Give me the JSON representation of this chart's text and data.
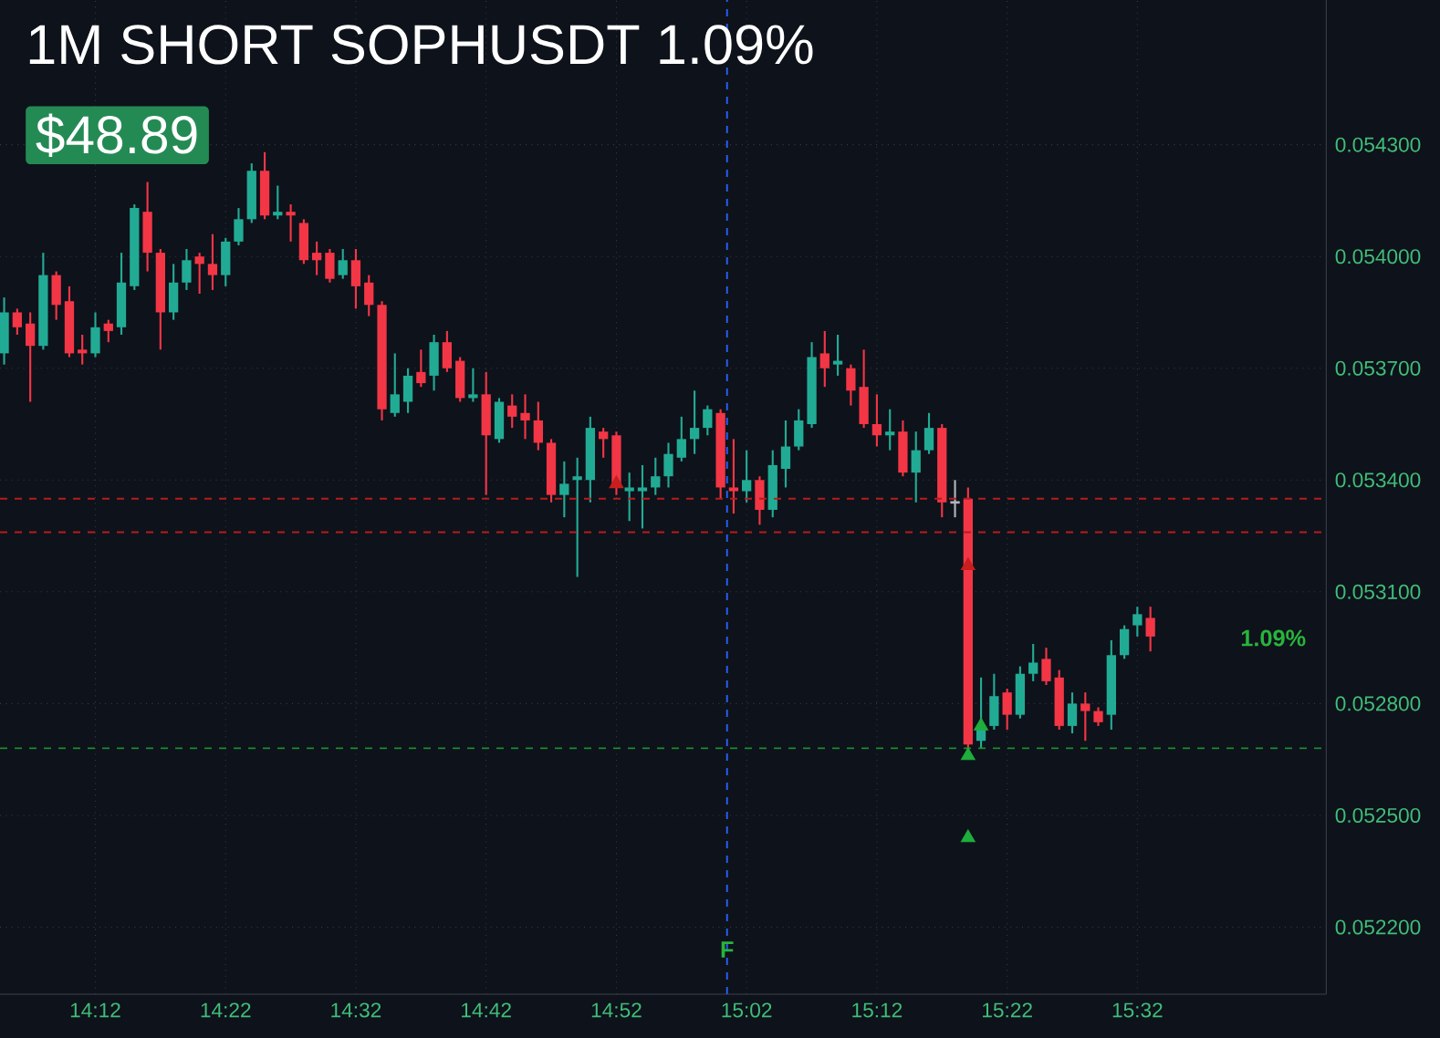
{
  "chart_data": {
    "type": "candlestick",
    "title": "1M SHORT SOPHUSDT 1.09%",
    "x": [
      14.0833,
      14.1,
      14.1167,
      14.1333,
      14.15,
      14.1667,
      14.1833,
      14.2,
      14.2167,
      14.2333,
      14.25,
      14.2667,
      14.2833,
      14.3,
      14.3167,
      14.3333,
      14.35,
      14.3667,
      14.3833,
      14.4,
      14.4167,
      14.4333,
      14.45,
      14.4667,
      14.4833,
      14.5,
      14.5167,
      14.5333,
      14.55,
      14.5667,
      14.5833,
      14.6,
      14.6167,
      14.6333,
      14.65,
      14.6667,
      14.6833,
      14.7,
      14.7167,
      14.7333,
      14.75,
      14.7667,
      14.7833,
      14.8,
      14.8167,
      14.8333,
      14.85,
      14.8667,
      14.8833,
      14.9,
      14.9167,
      14.9333,
      14.95,
      14.9667,
      14.9833,
      15.0,
      15.0167,
      15.0333,
      15.05,
      15.0667,
      15.0833,
      15.1,
      15.1167,
      15.1333,
      15.15,
      15.1667,
      15.1833,
      15.2,
      15.2167,
      15.2333,
      15.25,
      15.2667,
      15.2833,
      15.3,
      15.3167,
      15.3333,
      15.35,
      15.3667,
      15.3833,
      15.4,
      15.4167,
      15.4333,
      15.45,
      15.4667,
      15.4833,
      15.5,
      15.5167,
      15.5333,
      15.55
    ],
    "ohlc": [
      [
        0.05374,
        0.05389,
        0.05371,
        0.05385
      ],
      [
        0.05385,
        0.05386,
        0.05379,
        0.05381
      ],
      [
        0.05382,
        0.05385,
        0.05361,
        0.05376
      ],
      [
        0.05376,
        0.05401,
        0.05375,
        0.05395
      ],
      [
        0.05395,
        0.05396,
        0.05383,
        0.05387
      ],
      [
        0.05388,
        0.05392,
        0.05373,
        0.05374
      ],
      [
        0.05375,
        0.05379,
        0.05371,
        0.05374
      ],
      [
        0.05374,
        0.05385,
        0.05373,
        0.05381
      ],
      [
        0.05382,
        0.05383,
        0.05377,
        0.0538
      ],
      [
        0.05381,
        0.05401,
        0.05379,
        0.05393
      ],
      [
        0.05392,
        0.05414,
        0.05391,
        0.05413
      ],
      [
        0.05412,
        0.0542,
        0.05396,
        0.05401
      ],
      [
        0.05401,
        0.05402,
        0.05375,
        0.05385
      ],
      [
        0.05385,
        0.05398,
        0.05383,
        0.05393
      ],
      [
        0.05393,
        0.05402,
        0.05391,
        0.05399
      ],
      [
        0.054,
        0.05401,
        0.0539,
        0.05398
      ],
      [
        0.05398,
        0.05406,
        0.05391,
        0.05395
      ],
      [
        0.05395,
        0.05405,
        0.05392,
        0.05404
      ],
      [
        0.05404,
        0.05413,
        0.05403,
        0.0541
      ],
      [
        0.0541,
        0.05425,
        0.05409,
        0.05423
      ],
      [
        0.05423,
        0.05428,
        0.0541,
        0.05411
      ],
      [
        0.05411,
        0.05419,
        0.0541,
        0.05412
      ],
      [
        0.05412,
        0.05414,
        0.05404,
        0.05411
      ],
      [
        0.05409,
        0.0541,
        0.05398,
        0.05399
      ],
      [
        0.05401,
        0.05404,
        0.05395,
        0.05399
      ],
      [
        0.05401,
        0.05402,
        0.05393,
        0.05394
      ],
      [
        0.05395,
        0.05402,
        0.05394,
        0.05399
      ],
      [
        0.05399,
        0.05402,
        0.05386,
        0.05392
      ],
      [
        0.05393,
        0.05395,
        0.05384,
        0.05387
      ],
      [
        0.05387,
        0.05388,
        0.05356,
        0.05359
      ],
      [
        0.05358,
        0.05374,
        0.05357,
        0.05363
      ],
      [
        0.05361,
        0.0537,
        0.05358,
        0.05368
      ],
      [
        0.05369,
        0.05375,
        0.05365,
        0.05366
      ],
      [
        0.05368,
        0.05379,
        0.05364,
        0.05377
      ],
      [
        0.05377,
        0.0538,
        0.05369,
        0.0537
      ],
      [
        0.05372,
        0.05373,
        0.05361,
        0.05362
      ],
      [
        0.05362,
        0.0537,
        0.05361,
        0.05363
      ],
      [
        0.05363,
        0.05369,
        0.05336,
        0.05352
      ],
      [
        0.05351,
        0.05362,
        0.0535,
        0.05361
      ],
      [
        0.0536,
        0.05363,
        0.05354,
        0.05357
      ],
      [
        0.05358,
        0.05363,
        0.05351,
        0.05356
      ],
      [
        0.05356,
        0.05361,
        0.05348,
        0.0535
      ],
      [
        0.0535,
        0.05351,
        0.05334,
        0.05336
      ],
      [
        0.05336,
        0.05345,
        0.0533,
        0.05339
      ],
      [
        0.0534,
        0.05346,
        0.05314,
        0.05341
      ],
      [
        0.0534,
        0.05357,
        0.05334,
        0.05354
      ],
      [
        0.05353,
        0.05354,
        0.05346,
        0.05351
      ],
      [
        0.05352,
        0.05353,
        0.05336,
        0.05338
      ],
      [
        0.05337,
        0.05342,
        0.05329,
        0.05338
      ],
      [
        0.05337,
        0.05344,
        0.05327,
        0.05338
      ],
      [
        0.05338,
        0.05346,
        0.05336,
        0.05341
      ],
      [
        0.05341,
        0.0535,
        0.05338,
        0.05347
      ],
      [
        0.05346,
        0.05357,
        0.05345,
        0.05351
      ],
      [
        0.05351,
        0.05364,
        0.05347,
        0.05354
      ],
      [
        0.05354,
        0.0536,
        0.05352,
        0.05359
      ],
      [
        0.05358,
        0.05359,
        0.05335,
        0.05338
      ],
      [
        0.05338,
        0.05351,
        0.05331,
        0.05337
      ],
      [
        0.05337,
        0.05348,
        0.05334,
        0.0534
      ],
      [
        0.0534,
        0.05341,
        0.05328,
        0.05332
      ],
      [
        0.05332,
        0.05348,
        0.0533,
        0.05344
      ],
      [
        0.05343,
        0.05356,
        0.05338,
        0.05349
      ],
      [
        0.05349,
        0.05359,
        0.05348,
        0.05356
      ],
      [
        0.05355,
        0.05377,
        0.05354,
        0.05373
      ],
      [
        0.05374,
        0.0538,
        0.05365,
        0.0537
      ],
      [
        0.05371,
        0.05379,
        0.05368,
        0.05372
      ],
      [
        0.0537,
        0.05371,
        0.0536,
        0.05364
      ],
      [
        0.05365,
        0.05375,
        0.05354,
        0.05355
      ],
      [
        0.05355,
        0.05363,
        0.05349,
        0.05352
      ],
      [
        0.05352,
        0.05359,
        0.05348,
        0.05353
      ],
      [
        0.05353,
        0.05356,
        0.05341,
        0.05342
      ],
      [
        0.05342,
        0.05353,
        0.05334,
        0.05348
      ],
      [
        0.05348,
        0.05358,
        0.05347,
        0.05354
      ],
      [
        0.05354,
        0.05355,
        0.0533,
        0.05334
      ],
      [
        0.05334,
        0.0534,
        0.0533,
        0.05334
      ],
      [
        0.05335,
        0.05338,
        0.05267,
        0.05269
      ],
      [
        0.0527,
        0.05287,
        0.05268,
        0.05273
      ],
      [
        0.05274,
        0.05288,
        0.05273,
        0.05282
      ],
      [
        0.05283,
        0.05284,
        0.05273,
        0.05277
      ],
      [
        0.05277,
        0.0529,
        0.05276,
        0.05288
      ],
      [
        0.05288,
        0.05296,
        0.05286,
        0.05291
      ],
      [
        0.05292,
        0.05295,
        0.05285,
        0.05286
      ],
      [
        0.05287,
        0.05289,
        0.05273,
        0.05274
      ],
      [
        0.05274,
        0.05283,
        0.05272,
        0.0528
      ],
      [
        0.0528,
        0.05283,
        0.0527,
        0.05278
      ],
      [
        0.05278,
        0.05279,
        0.05274,
        0.05275
      ],
      [
        0.05277,
        0.05297,
        0.05273,
        0.05293
      ],
      [
        0.05293,
        0.05301,
        0.05292,
        0.053
      ],
      [
        0.05301,
        0.05306,
        0.05298,
        0.05304
      ],
      [
        0.05303,
        0.05306,
        0.05294,
        0.05298
      ]
    ],
    "colors": [
      "#22ab94",
      "#f23645",
      "#f23645",
      "#22ab94",
      "#f23645",
      "#f23645",
      "#f23645",
      "#22ab94",
      "#f23645",
      "#22ab94",
      "#22ab94",
      "#f23645",
      "#f23645",
      "#22ab94",
      "#22ab94",
      "#f23645",
      "#f23645",
      "#22ab94",
      "#22ab94",
      "#22ab94",
      "#f23645",
      "#22ab94",
      "#f23645",
      "#f23645",
      "#f23645",
      "#f23645",
      "#22ab94",
      "#f23645",
      "#f23645",
      "#f23645",
      "#22ab94",
      "#22ab94",
      "#f23645",
      "#22ab94",
      "#f23645",
      "#f23645",
      "#22ab94",
      "#f23645",
      "#22ab94",
      "#f23645",
      "#f23645",
      "#f23645",
      "#f23645",
      "#22ab94",
      "#22ab94",
      "#22ab94",
      "#f23645",
      "#f23645",
      "#22ab94",
      "#22ab94",
      "#22ab94",
      "#22ab94",
      "#22ab94",
      "#22ab94",
      "#22ab94",
      "#f23645",
      "#f23645",
      "#22ab94",
      "#f23645",
      "#22ab94",
      "#22ab94",
      "#22ab94",
      "#22ab94",
      "#f23645",
      "#22ab94",
      "#f23645",
      "#f23645",
      "#f23645",
      "#22ab94",
      "#f23645",
      "#22ab94",
      "#22ab94",
      "#f23645",
      "#b2b5be",
      "#f23645",
      "#22ab94",
      "#22ab94",
      "#f23645",
      "#22ab94",
      "#22ab94",
      "#f23645",
      "#f23645",
      "#22ab94",
      "#f23645",
      "#f23645",
      "#22ab94",
      "#22ab94",
      "#22ab94",
      "#f23645"
    ],
    "series": [
      {
        "type": "scatter",
        "color": "#c81e1e",
        "marker": "triangle",
        "x": [
          14.8667,
          15.3167
        ],
        "values": [
          0.05339,
          0.05317
        ]
      },
      {
        "type": "scatter",
        "color": "#1fae3c",
        "marker": "triangle",
        "x": [
          15.3167,
          15.3167,
          15.3333
        ],
        "values": [
          0.05266,
          0.05244,
          0.05274
        ]
      }
    ],
    "xlim": [
      14.078,
      15.775
    ],
    "ylim": [
      0.05202,
      0.05469
    ],
    "xticks": [
      {
        "value": 14.2,
        "label": "14:12"
      },
      {
        "value": 14.3667,
        "label": "14:22"
      },
      {
        "value": 14.5333,
        "label": "14:32"
      },
      {
        "value": 14.7,
        "label": "14:42"
      },
      {
        "value": 14.8667,
        "label": "14:52"
      },
      {
        "value": 15.0333,
        "label": "15:02"
      },
      {
        "value": 15.2,
        "label": "15:12"
      },
      {
        "value": 15.3667,
        "label": "15:22"
      },
      {
        "value": 15.5333,
        "label": "15:32"
      }
    ],
    "yticks": [
      {
        "value": 0.0522,
        "label": "0.052200"
      },
      {
        "value": 0.0525,
        "label": "0.052500"
      },
      {
        "value": 0.0528,
        "label": "0.052800"
      },
      {
        "value": 0.0531,
        "label": "0.053100"
      },
      {
        "value": 0.0534,
        "label": "0.053400"
      },
      {
        "value": 0.0537,
        "label": "0.053700"
      },
      {
        "value": 0.054,
        "label": "0.054000"
      },
      {
        "value": 0.0543,
        "label": "0.054300"
      }
    ],
    "ref_lines": [
      {
        "axis": "y",
        "value": 0.05335,
        "color": "#b71c1c",
        "line_style": "dashed"
      },
      {
        "axis": "y",
        "value": 0.05326,
        "color": "#b71c1c",
        "line_style": "dashed"
      },
      {
        "axis": "y",
        "value": 0.05268,
        "color": "#1b8f2e",
        "line_style": "dashed"
      },
      {
        "axis": "x",
        "value": 15.0083,
        "color": "#2962ff",
        "line_style": "dashed"
      }
    ],
    "annotations": [
      "$48.89",
      "1.09%",
      {
        "text": "F",
        "x": 15.0083,
        "y": 0.05214
      }
    ],
    "grid": true
  }
}
